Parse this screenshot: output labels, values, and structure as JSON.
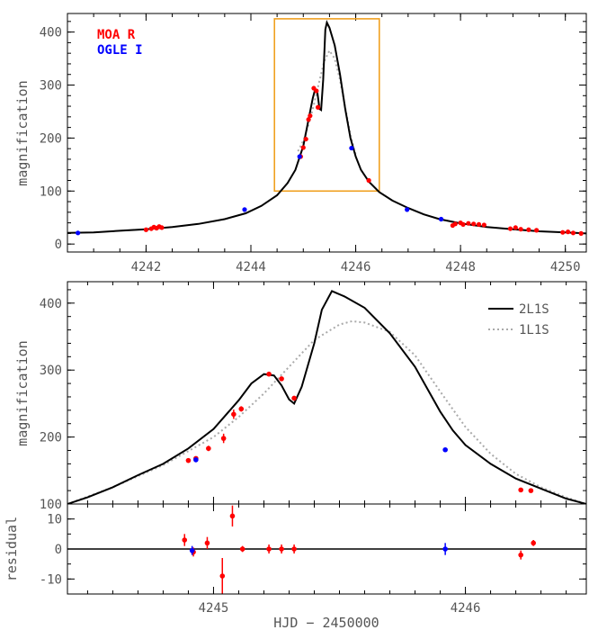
{
  "chart_data": [
    {
      "type": "scatter",
      "panel": "overview",
      "xlim": [
        4240.5,
        4250.4
      ],
      "ylim": [
        -15,
        435
      ],
      "x_ticks": [
        4242,
        4244,
        4246,
        4248,
        4250
      ],
      "y_ticks": [
        0,
        100,
        200,
        300,
        400
      ],
      "ylabel": "magnification",
      "legend": [
        {
          "name": "MOA R",
          "color": "#ff0000"
        },
        {
          "name": "OGLE I",
          "color": "#0000ff"
        }
      ],
      "zoom_box": {
        "x": [
          4244.45,
          4246.45
        ],
        "y": [
          100,
          425
        ],
        "color": "#f0a020"
      },
      "model_2L1S": [
        [
          4240.5,
          21
        ],
        [
          4241,
          22
        ],
        [
          4241.5,
          25
        ],
        [
          4242,
          28
        ],
        [
          4242.5,
          32
        ],
        [
          4243,
          38
        ],
        [
          4243.5,
          47
        ],
        [
          4243.9,
          58
        ],
        [
          4244.2,
          72
        ],
        [
          4244.5,
          92
        ],
        [
          4244.7,
          115
        ],
        [
          4244.85,
          140
        ],
        [
          4245,
          185
        ],
        [
          4245.1,
          235
        ],
        [
          4245.18,
          275
        ],
        [
          4245.22,
          290
        ],
        [
          4245.27,
          285
        ],
        [
          4245.31,
          255
        ],
        [
          4245.34,
          253
        ],
        [
          4245.38,
          310
        ],
        [
          4245.42,
          405
        ],
        [
          4245.45,
          418
        ],
        [
          4245.5,
          408
        ],
        [
          4245.6,
          375
        ],
        [
          4245.7,
          320
        ],
        [
          4245.8,
          255
        ],
        [
          4245.9,
          200
        ],
        [
          4246,
          165
        ],
        [
          4246.1,
          140
        ],
        [
          4246.25,
          118
        ],
        [
          4246.45,
          98
        ],
        [
          4246.7,
          82
        ],
        [
          4247,
          68
        ],
        [
          4247.3,
          56
        ],
        [
          4247.6,
          47
        ],
        [
          4248,
          39
        ],
        [
          4248.5,
          32
        ],
        [
          4249,
          28
        ],
        [
          4249.5,
          24
        ],
        [
          4250,
          22
        ],
        [
          4250.4,
          20
        ]
      ],
      "model_1L1S": [
        [
          4244.9,
          175
        ],
        [
          4245.0,
          195
        ],
        [
          4245.1,
          225
        ],
        [
          4245.2,
          262
        ],
        [
          4245.3,
          305
        ],
        [
          4245.4,
          345
        ],
        [
          4245.5,
          365
        ],
        [
          4245.6,
          350
        ],
        [
          4245.7,
          310
        ],
        [
          4245.8,
          258
        ],
        [
          4245.9,
          205
        ],
        [
          4246.0,
          168
        ]
      ],
      "moa_points": [
        [
          4242,
          27
        ],
        [
          4242.1,
          29
        ],
        [
          4242.15,
          32
        ],
        [
          4242.2,
          30
        ],
        [
          4242.25,
          33
        ],
        [
          4242.3,
          31
        ],
        [
          4244.95,
          165
        ],
        [
          4245.0,
          182
        ],
        [
          4245.05,
          198
        ],
        [
          4245.1,
          235
        ],
        [
          4245.13,
          242
        ],
        [
          4245.2,
          294
        ],
        [
          4245.25,
          289
        ],
        [
          4245.28,
          258
        ],
        [
          4246.25,
          120
        ],
        [
          4247.85,
          35
        ],
        [
          4247.9,
          38
        ],
        [
          4248,
          40
        ],
        [
          4248.05,
          37
        ],
        [
          4248.15,
          39
        ],
        [
          4248.25,
          38
        ],
        [
          4248.35,
          37
        ],
        [
          4248.45,
          36
        ],
        [
          4248.95,
          29
        ],
        [
          4249.05,
          31
        ],
        [
          4249.15,
          28
        ],
        [
          4249.3,
          27
        ],
        [
          4249.45,
          26
        ],
        [
          4249.95,
          22
        ],
        [
          4250.05,
          23
        ],
        [
          4250.15,
          21
        ],
        [
          4250.3,
          20
        ]
      ],
      "ogle_points": [
        [
          4240.7,
          21
        ],
        [
          4243.88,
          65
        ],
        [
          4244.93,
          165
        ],
        [
          4245.92,
          181
        ],
        [
          4246.98,
          65
        ],
        [
          4247.63,
          47
        ]
      ]
    },
    {
      "type": "scatter",
      "panel": "zoom",
      "xlim": [
        4244.42,
        4246.48
      ],
      "ylim": [
        100,
        432
      ],
      "x_ticks": [
        4245,
        4246
      ],
      "y_ticks": [
        100,
        200,
        300,
        400
      ],
      "ylabel": "magnification",
      "legend": [
        {
          "name": "2L1S",
          "style": "solid",
          "color": "#000000"
        },
        {
          "name": "1L1S",
          "style": "dotted",
          "color": "#aaaaaa"
        }
      ],
      "model_2L1S": [
        [
          4244.42,
          100
        ],
        [
          4244.5,
          110
        ],
        [
          4244.6,
          125
        ],
        [
          4244.7,
          143
        ],
        [
          4244.8,
          160
        ],
        [
          4244.9,
          183
        ],
        [
          4245.0,
          212
        ],
        [
          4245.1,
          255
        ],
        [
          4245.15,
          280
        ],
        [
          4245.2,
          294
        ],
        [
          4245.24,
          292
        ],
        [
          4245.27,
          277
        ],
        [
          4245.3,
          256
        ],
        [
          4245.32,
          250
        ],
        [
          4245.35,
          275
        ],
        [
          4245.4,
          340
        ],
        [
          4245.43,
          390
        ],
        [
          4245.47,
          418
        ],
        [
          4245.52,
          410
        ],
        [
          4245.6,
          393
        ],
        [
          4245.7,
          355
        ],
        [
          4245.8,
          305
        ],
        [
          4245.9,
          238
        ],
        [
          4245.95,
          210
        ],
        [
          4246.0,
          188
        ],
        [
          4246.1,
          160
        ],
        [
          4246.2,
          138
        ],
        [
          4246.3,
          123
        ],
        [
          4246.4,
          108
        ],
        [
          4246.48,
          100
        ]
      ],
      "model_1L1S": [
        [
          4244.42,
          100
        ],
        [
          4244.6,
          125
        ],
        [
          4244.8,
          158
        ],
        [
          4245.0,
          200
        ],
        [
          4245.1,
          230
        ],
        [
          4245.2,
          265
        ],
        [
          4245.3,
          305
        ],
        [
          4245.4,
          345
        ],
        [
          4245.5,
          368
        ],
        [
          4245.55,
          373
        ],
        [
          4245.6,
          371
        ],
        [
          4245.7,
          357
        ],
        [
          4245.8,
          322
        ],
        [
          4245.9,
          268
        ],
        [
          4246.0,
          215
        ],
        [
          4246.1,
          175
        ],
        [
          4246.2,
          145
        ],
        [
          4246.3,
          125
        ],
        [
          4246.4,
          110
        ],
        [
          4246.48,
          100
        ]
      ],
      "moa_points": [
        {
          "x": 4244.9,
          "y": 165,
          "err": 3
        },
        {
          "x": 4244.93,
          "y": 168,
          "err": 3
        },
        {
          "x": 4244.98,
          "y": 183,
          "err": 4
        },
        {
          "x": 4245.04,
          "y": 198,
          "err": 7
        },
        {
          "x": 4245.08,
          "y": 234,
          "err": 7
        },
        {
          "x": 4245.11,
          "y": 242,
          "err": 4
        },
        {
          "x": 4245.22,
          "y": 294,
          "err": 3
        },
        {
          "x": 4245.27,
          "y": 287,
          "err": 3
        },
        {
          "x": 4245.32,
          "y": 258,
          "err": 3
        },
        {
          "x": 4246.22,
          "y": 121,
          "err": 3
        },
        {
          "x": 4246.26,
          "y": 120,
          "err": 3
        }
      ],
      "ogle_points": [
        {
          "x": 4244.93,
          "y": 166,
          "err": 2
        },
        {
          "x": 4245.92,
          "y": 181,
          "err": 2
        }
      ]
    },
    {
      "type": "scatter",
      "panel": "residual",
      "xlim": [
        4244.42,
        4246.48
      ],
      "ylim": [
        -15,
        15
      ],
      "x_ticks": [
        4245,
        4246
      ],
      "y_ticks": [
        -10,
        0,
        10
      ],
      "ylabel": "residual",
      "xlabel": "HJD − 2450000",
      "moa_points": [
        {
          "x": 4244.885,
          "y": 3,
          "err": 2
        },
        {
          "x": 4244.92,
          "y": -1,
          "err": 1.5
        },
        {
          "x": 4244.975,
          "y": 2,
          "err": 2
        },
        {
          "x": 4245.035,
          "y": -9,
          "err": 6
        },
        {
          "x": 4245.075,
          "y": 11,
          "err": 3.5
        },
        {
          "x": 4245.115,
          "y": 0,
          "err": 1
        },
        {
          "x": 4245.22,
          "y": 0,
          "err": 1.5
        },
        {
          "x": 4245.27,
          "y": 0,
          "err": 1.5
        },
        {
          "x": 4245.32,
          "y": 0,
          "err": 1.5
        },
        {
          "x": 4246.22,
          "y": -2,
          "err": 1.5
        },
        {
          "x": 4246.27,
          "y": 2,
          "err": 1
        }
      ],
      "ogle_points": [
        {
          "x": 4244.915,
          "y": -0.5,
          "err": 1.5
        },
        {
          "x": 4245.92,
          "y": 0,
          "err": 2
        }
      ]
    }
  ]
}
